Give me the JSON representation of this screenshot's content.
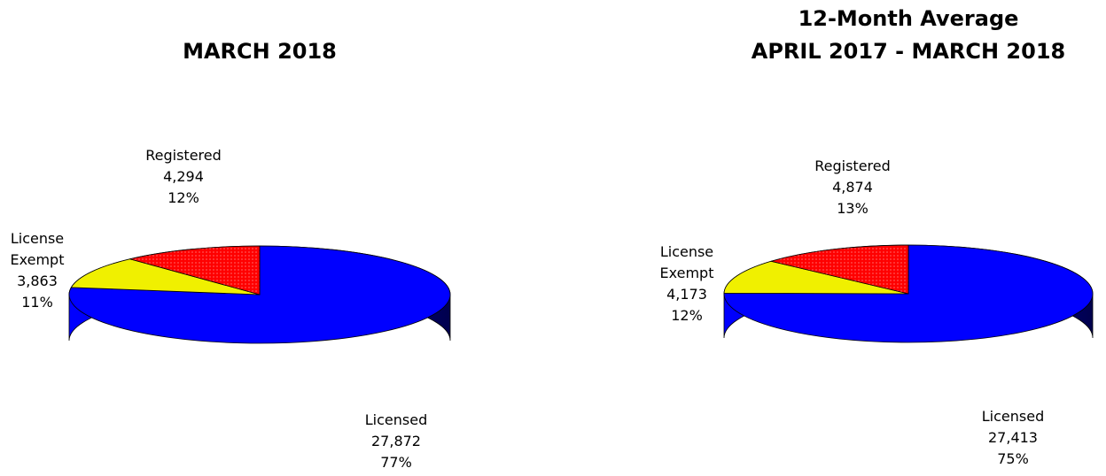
{
  "chart_data": [
    {
      "type": "pie3d",
      "title": "MARCH 2018",
      "categories": [
        "Licensed",
        "License Exempt",
        "Registered"
      ],
      "values": [
        27872,
        3863,
        4294
      ],
      "value_labels": [
        "27,872",
        "3,863",
        "4,294"
      ],
      "percentages": [
        77,
        11,
        12
      ],
      "percentage_labels": [
        "77%",
        "11%",
        "12%"
      ],
      "colors": [
        "#0000ff",
        "#f0f000",
        "#ff0000"
      ]
    },
    {
      "type": "pie3d",
      "title": "12-Month Average",
      "subtitle": "APRIL 2017 - MARCH 2018",
      "categories": [
        "Licensed",
        "License Exempt",
        "Registered"
      ],
      "values": [
        27413,
        4173,
        4874
      ],
      "value_labels": [
        "27,413",
        "4,173",
        "4,874"
      ],
      "percentages": [
        75,
        12,
        13
      ],
      "percentage_labels": [
        "75%",
        "12%",
        "13%"
      ],
      "colors": [
        "#0000ff",
        "#f0f000",
        "#ff0000"
      ]
    }
  ]
}
